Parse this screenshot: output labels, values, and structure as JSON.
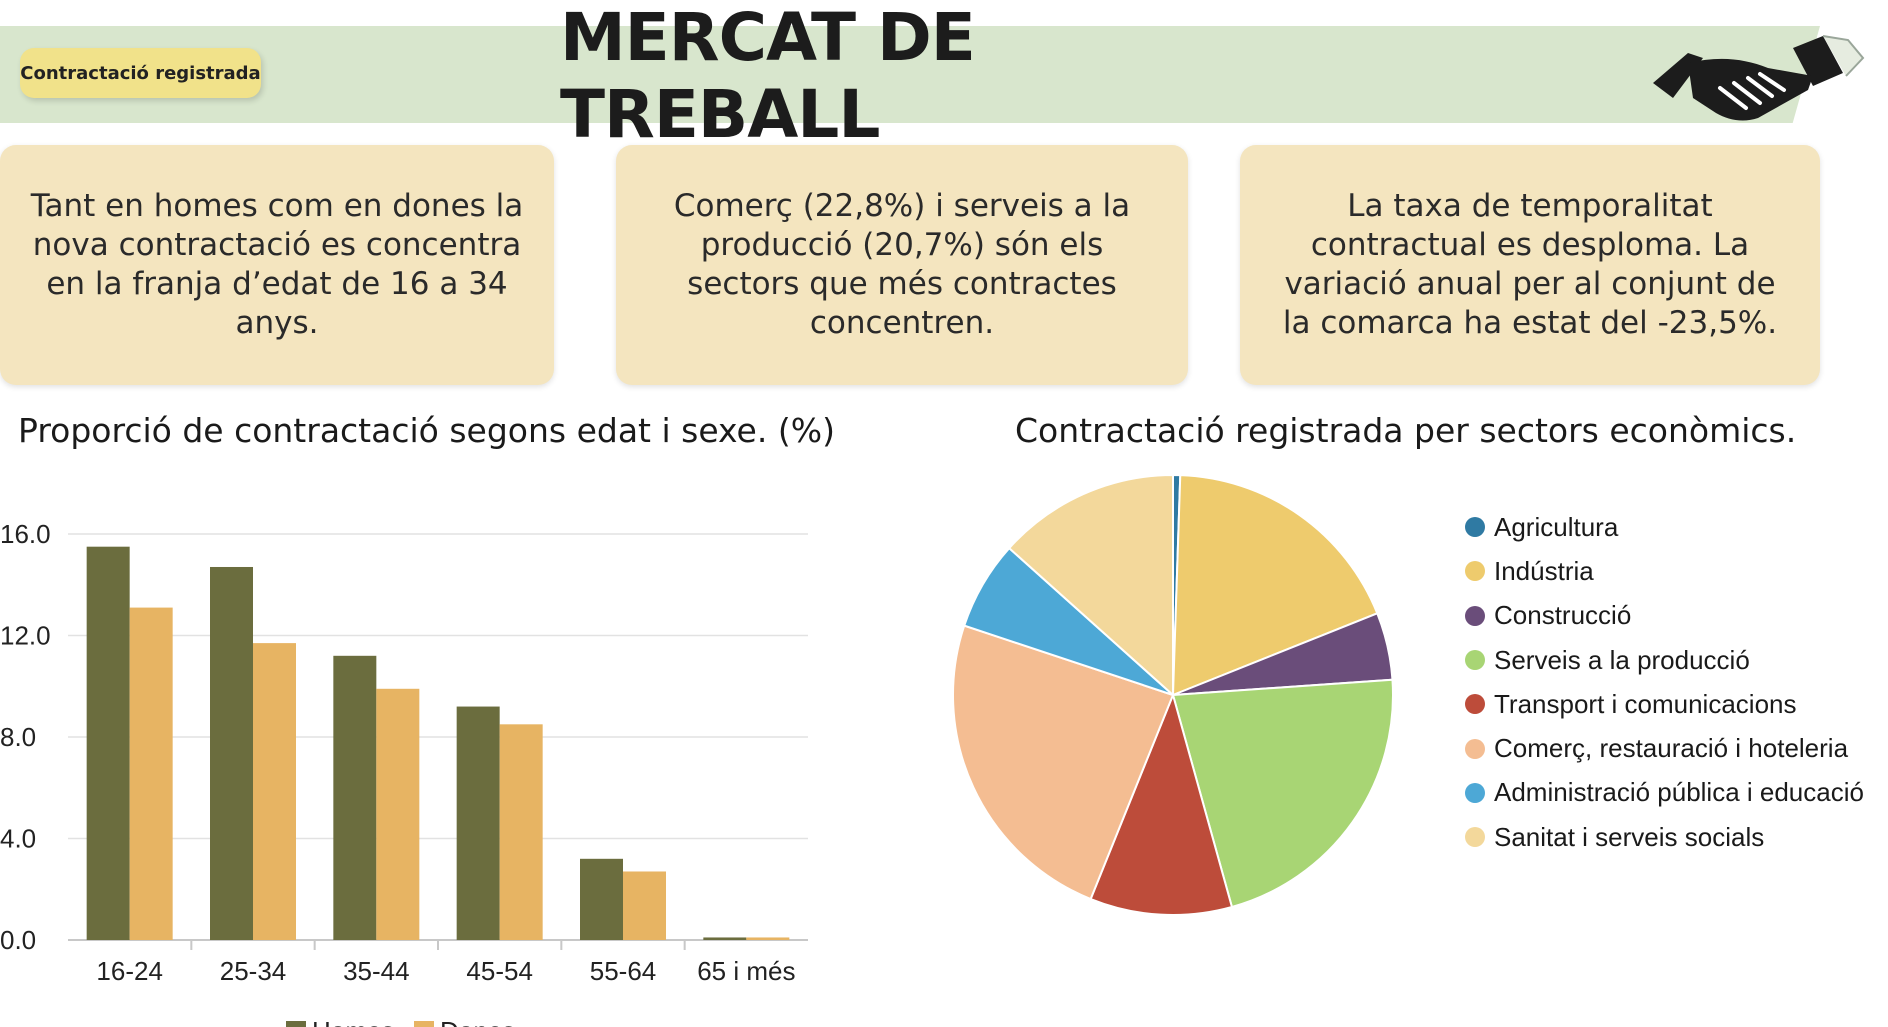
{
  "header": {
    "badge": "Contractació registrada",
    "title": "MERCAT DE TREBALL"
  },
  "highlights": [
    "Tant en homes com en dones la nova contractació es concentra en la franja d’edat de 16 a 34 anys.",
    "Comerç (22,8%) i serveis a la producció (20,7%) són els sectors que més contractes concentren.",
    "La taxa de temporalitat contractual es desploma. La variació anual per al conjunt de la comarca ha estat del -23,5%."
  ],
  "icons": {
    "header": "handshake-icon"
  },
  "chart_data": [
    {
      "type": "bar",
      "title": "Proporció de contractació segons edat i sexe.  (%)",
      "categories": [
        "16-24",
        "25-34",
        "35-44",
        "45-54",
        "55-64",
        "65 i més"
      ],
      "series": [
        {
          "name": "Homes",
          "color": "#6b6d3e",
          "values": [
            15.5,
            14.7,
            11.2,
            9.2,
            3.2,
            0.1
          ]
        },
        {
          "name": "Dones",
          "color": "#e7b463",
          "values": [
            13.1,
            11.7,
            9.9,
            8.5,
            2.7,
            0.1
          ]
        }
      ],
      "ylim": [
        0,
        16
      ],
      "yticks": [
        "0.0",
        "4.0",
        "8.0",
        "12.0",
        "16.0"
      ],
      "grid": true,
      "legend_position": "bottom"
    },
    {
      "type": "pie",
      "title": "Contractació registrada per sectors econòmics.",
      "legend_position": "right",
      "slices": [
        {
          "label": "Agricultura",
          "value": 0.5,
          "color": "#2f7aa3"
        },
        {
          "label": "Indústria",
          "value": 17.5,
          "color": "#eecb6d"
        },
        {
          "label": "Construcció",
          "value": 4.7,
          "color": "#6a4d7a"
        },
        {
          "label": "Serveis a la producció",
          "value": 20.7,
          "color": "#a8d574"
        },
        {
          "label": "Transport i comunicacions",
          "value": 9.9,
          "color": "#bd4c3a"
        },
        {
          "label": "Comerç, restauració i hoteleria",
          "value": 22.8,
          "color": "#f4bd92"
        },
        {
          "label": "Administració pública i educació",
          "value": 6.2,
          "color": "#4da8d6"
        },
        {
          "label": "Sanitat i serveis socials",
          "value": 12.7,
          "color": "#f3d89b"
        }
      ]
    }
  ]
}
